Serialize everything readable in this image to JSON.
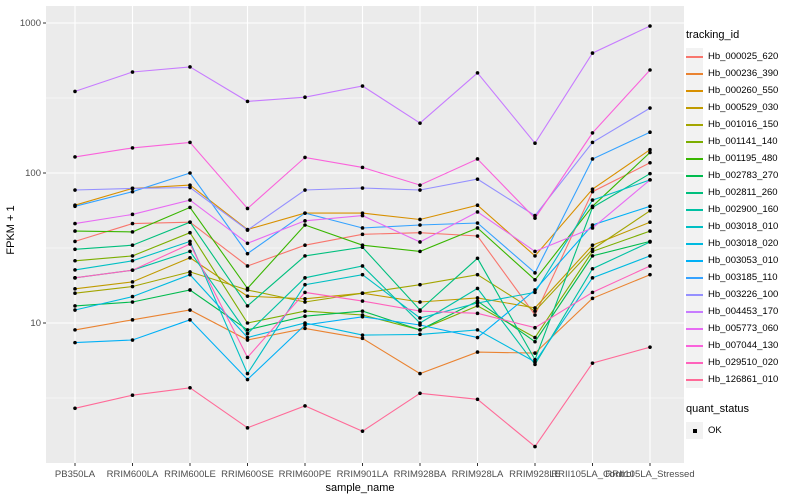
{
  "legend": {
    "tracking_title": "tracking_id",
    "quant_title": "quant_status",
    "quant_items": [
      {
        "label": "OK",
        "marker": "black-point"
      }
    ]
  },
  "chart_data": {
    "type": "line",
    "title": "",
    "xlabel": "sample_name",
    "ylabel": "FPKM + 1",
    "y_scale": "log10",
    "ylim": [
      1.17,
      1300
    ],
    "y_ticks": [
      10,
      100,
      1000
    ],
    "y_minor_ticks": [
      3.162,
      31.62,
      316.2
    ],
    "grid": true,
    "legend_position": "right",
    "point_marker": "black dot (quant_status OK)",
    "style": {
      "panel_bg": "#EBEBEB",
      "grid_color": "#FFFFFF",
      "tick_color": "#333333",
      "tick_label_color": "#4D4D4D",
      "axis_title_color": "#000000",
      "point_color": "#000000",
      "legend_key_bg": "#F2F2F2"
    },
    "categories": [
      "PB350LA",
      "RRIM600LA",
      "RRIM600LE",
      "RRIM600SE",
      "RRIM600PE",
      "RRIM901LA",
      "RRIM928BA",
      "RRIM928LA",
      "RRIM928LE",
      "RRII105LA_Control",
      "RRII105LA_Stressed"
    ],
    "series": [
      {
        "name": "Hb_000025_620",
        "color": "#F8766D",
        "values": [
          35,
          46,
          47,
          24,
          33,
          39,
          40,
          38,
          11.3,
          75,
          117
        ]
      },
      {
        "name": "Hb_000236_390",
        "color": "#EA8331",
        "values": [
          9,
          10.5,
          12.2,
          7.7,
          9.2,
          7.9,
          4.6,
          6.4,
          6.3,
          14.6,
          21
        ]
      },
      {
        "name": "Hb_000260_550",
        "color": "#D89000",
        "values": [
          61,
          79,
          83,
          42,
          54,
          54,
          49,
          61,
          28,
          78,
          143
        ]
      },
      {
        "name": "Hb_000529_030",
        "color": "#C09B00",
        "values": [
          16.9,
          18.8,
          27.2,
          15.1,
          14.5,
          15.8,
          13.8,
          14.7,
          12.6,
          33,
          47
        ]
      },
      {
        "name": "Hb_001016_150",
        "color": "#A3A500",
        "values": [
          15.8,
          17.5,
          21.9,
          16.6,
          13.8,
          15.8,
          18,
          21,
          12,
          31,
          56
        ]
      },
      {
        "name": "Hb_001141_140",
        "color": "#7CAE00",
        "values": [
          26,
          28,
          40,
          10,
          12,
          11.3,
          9,
          13,
          8,
          30,
          41
        ]
      },
      {
        "name": "Hb_001195_480",
        "color": "#39B600",
        "values": [
          41,
          40.5,
          59,
          17,
          45,
          33,
          30,
          43,
          19.4,
          60,
          137
        ]
      },
      {
        "name": "Hb_002783_270",
        "color": "#00BB4E",
        "values": [
          13,
          13.8,
          16.6,
          9,
          11.1,
          12,
          9,
          14,
          7.5,
          28,
          35
        ]
      },
      {
        "name": "Hb_002811_260",
        "color": "#00BF7D",
        "values": [
          31,
          33,
          47,
          13,
          28,
          32,
          12.2,
          27,
          5.7,
          59,
          99
        ]
      },
      {
        "name": "Hb_002900_160",
        "color": "#00C1A3",
        "values": [
          20,
          22.5,
          30,
          8.5,
          20,
          24,
          10,
          17,
          5.3,
          23,
          34.7
        ]
      },
      {
        "name": "Hb_003018_010",
        "color": "#00BFC4",
        "values": [
          22.6,
          26,
          35,
          4.6,
          18,
          21,
          10.8,
          13.6,
          16,
          66,
          90
        ]
      },
      {
        "name": "Hb_003018_020",
        "color": "#00BAE0",
        "values": [
          12.2,
          15,
          21,
          8,
          10,
          8.3,
          8.4,
          9,
          5.5,
          20,
          28
        ]
      },
      {
        "name": "Hb_003053_010",
        "color": "#00B0F6",
        "values": [
          7.4,
          7.7,
          10.5,
          4.2,
          9.7,
          11,
          9.7,
          8,
          16.6,
          45,
          60
        ]
      },
      {
        "name": "Hb_003185_110",
        "color": "#35A2FF",
        "values": [
          60,
          75,
          100,
          29,
          54,
          43,
          45,
          46.4,
          21.6,
          124,
          187
        ]
      },
      {
        "name": "Hb_003226_100",
        "color": "#9590FF",
        "values": [
          77,
          79,
          80,
          41.6,
          77,
          79.4,
          77,
          91,
          52,
          160,
          271
        ]
      },
      {
        "name": "Hb_004453_170",
        "color": "#C77CFF",
        "values": [
          350,
          471,
          510,
          300,
          320,
          380,
          215,
          465,
          158,
          630,
          955
        ]
      },
      {
        "name": "Hb_005773_060",
        "color": "#E76BF3",
        "values": [
          46,
          53,
          66,
          34,
          48,
          52,
          34.7,
          55,
          30,
          43,
          90
        ]
      },
      {
        "name": "Hb_007044_130",
        "color": "#FA62DB",
        "values": [
          128,
          147,
          160,
          58,
          127,
          109,
          83,
          124,
          50,
          185,
          486
        ]
      },
      {
        "name": "Hb_029510_020",
        "color": "#FF62BC",
        "values": [
          20,
          22.5,
          33.6,
          5.9,
          16,
          14,
          12,
          11.6,
          9.3,
          16,
          24
        ]
      },
      {
        "name": "Hb_126861_010",
        "color": "#FF6A98",
        "values": [
          2.7,
          3.3,
          3.7,
          2.0,
          2.8,
          1.9,
          3.4,
          3.1,
          1.5,
          5.4,
          6.9
        ]
      }
    ]
  }
}
